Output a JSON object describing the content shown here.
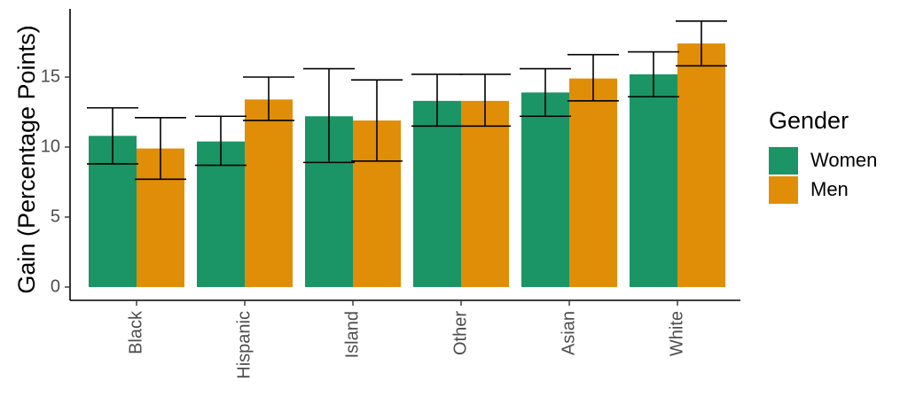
{
  "chart_data": {
    "type": "bar",
    "ylabel": "Gain (Percentage Points)",
    "xlabel": "",
    "categories": [
      "Black",
      "Hispanic",
      "Island",
      "Other",
      "Asian",
      "White"
    ],
    "ylim": [
      0,
      19.5
    ],
    "yticks": [
      0,
      5,
      10,
      15
    ],
    "series": [
      {
        "name": "Women",
        "color": "#1b9466",
        "values": [
          10.8,
          10.4,
          12.2,
          13.3,
          13.9,
          15.2
        ],
        "lower": [
          8.8,
          8.7,
          8.9,
          11.5,
          12.2,
          13.6
        ],
        "upper": [
          12.8,
          12.2,
          15.6,
          15.2,
          15.6,
          16.8
        ]
      },
      {
        "name": "Men",
        "color": "#e08e07",
        "values": [
          9.9,
          13.4,
          11.9,
          13.3,
          14.9,
          17.4
        ],
        "lower": [
          7.7,
          11.9,
          9.0,
          11.5,
          13.3,
          15.8
        ],
        "upper": [
          12.1,
          15.0,
          14.8,
          15.2,
          16.6,
          19.0
        ]
      }
    ],
    "legend": {
      "title": "Gender",
      "position": "right"
    },
    "grid": false
  }
}
